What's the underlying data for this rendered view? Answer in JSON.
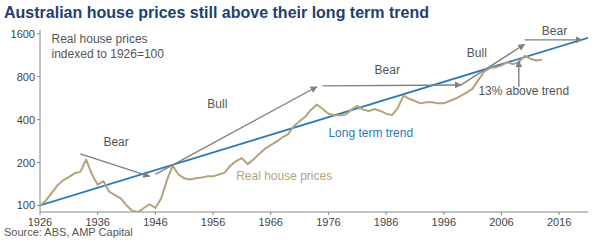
{
  "chart_data": {
    "type": "line",
    "title": "Australian house prices still above their long term trend",
    "source": "Source: ABS, AMP Capital",
    "log": "y",
    "grid": false,
    "xlim": [
      1926,
      2021
    ],
    "xticks": [
      1926,
      1936,
      1946,
      1956,
      1966,
      1976,
      1986,
      1996,
      2006,
      2016
    ],
    "ylim": [
      90,
      1700
    ],
    "yticks": [
      100,
      200,
      400,
      800,
      1600
    ],
    "series": [
      {
        "name": "Real house prices",
        "color": "#b3a37c",
        "x": [
          1926,
          1927,
          1928,
          1929,
          1930,
          1931,
          1932,
          1933,
          1934,
          1935,
          1936,
          1937,
          1938,
          1939,
          1940,
          1941,
          1942,
          1943,
          1944,
          1945,
          1946,
          1947,
          1948,
          1949,
          1950,
          1951,
          1952,
          1953,
          1954,
          1955,
          1956,
          1957,
          1958,
          1959,
          1960,
          1961,
          1962,
          1963,
          1964,
          1965,
          1966,
          1967,
          1968,
          1969,
          1970,
          1971,
          1972,
          1973,
          1974,
          1975,
          1976,
          1977,
          1978,
          1979,
          1980,
          1981,
          1982,
          1983,
          1984,
          1985,
          1986,
          1987,
          1988,
          1989,
          1990,
          1991,
          1992,
          1993,
          1994,
          1995,
          1996,
          1997,
          1998,
          1999,
          2000,
          2001,
          2002,
          2003,
          2004,
          2005,
          2006,
          2007,
          2008,
          2009,
          2010,
          2011,
          2012,
          2013
        ],
        "values": [
          100,
          108,
          122,
          138,
          150,
          158,
          168,
          172,
          210,
          165,
          140,
          148,
          125,
          118,
          112,
          100,
          92,
          90,
          96,
          102,
          96,
          112,
          150,
          190,
          165,
          155,
          152,
          155,
          157,
          160,
          160,
          165,
          170,
          190,
          205,
          215,
          195,
          210,
          230,
          250,
          265,
          280,
          300,
          315,
          360,
          390,
          420,
          470,
          510,
          475,
          440,
          430,
          430,
          435,
          470,
          500,
          470,
          460,
          475,
          460,
          440,
          430,
          480,
          590,
          560,
          540,
          520,
          530,
          530,
          520,
          520,
          540,
          560,
          590,
          620,
          660,
          760,
          870,
          920,
          930,
          960,
          1010,
          980,
          1010,
          1120,
          1070,
          1040,
          1050
        ]
      },
      {
        "name": "Long term trend",
        "color": "#2a7ab8",
        "x": [
          1926,
          2021
        ],
        "values": [
          100,
          1500
        ]
      }
    ],
    "annotations": [
      {
        "text": "Real house prices",
        "x": 1928,
        "y": 1380
      },
      {
        "text": "indexed to 1926=100",
        "x": 1928,
        "y": 1080
      },
      {
        "text": "Bear",
        "x": 1937,
        "y": 260
      },
      {
        "text": "Bull",
        "x": 1955,
        "y": 480
      },
      {
        "text": "Bear",
        "x": 1984,
        "y": 830
      },
      {
        "text": "Bull",
        "x": 2000,
        "y": 1100
      },
      {
        "text": "Bear",
        "x": 2013,
        "y": 1560
      },
      {
        "text": "13% above trend",
        "x": 2002,
        "y": 600
      },
      {
        "text": "Real house prices",
        "x": 1960,
        "y": 150,
        "series": 0
      },
      {
        "text": "Long term trend",
        "x": 1976,
        "y": 300,
        "series": 1
      }
    ],
    "arrows": [
      {
        "x0": 1933,
        "y0": 230,
        "x1": 1945,
        "y1": 160
      },
      {
        "x0": 1946,
        "y0": 165,
        "x1": 1974,
        "y1": 680
      },
      {
        "x0": 1975,
        "y0": 690,
        "x1": 1999,
        "y1": 700
      },
      {
        "x0": 1999,
        "y0": 700,
        "x1": 2010,
        "y1": 1350
      },
      {
        "x0": 2010,
        "y0": 1450,
        "x1": 2020,
        "y1": 1450
      },
      {
        "x0": 2009,
        "y0": 680,
        "x1": 2009,
        "y1": 1030
      }
    ]
  }
}
